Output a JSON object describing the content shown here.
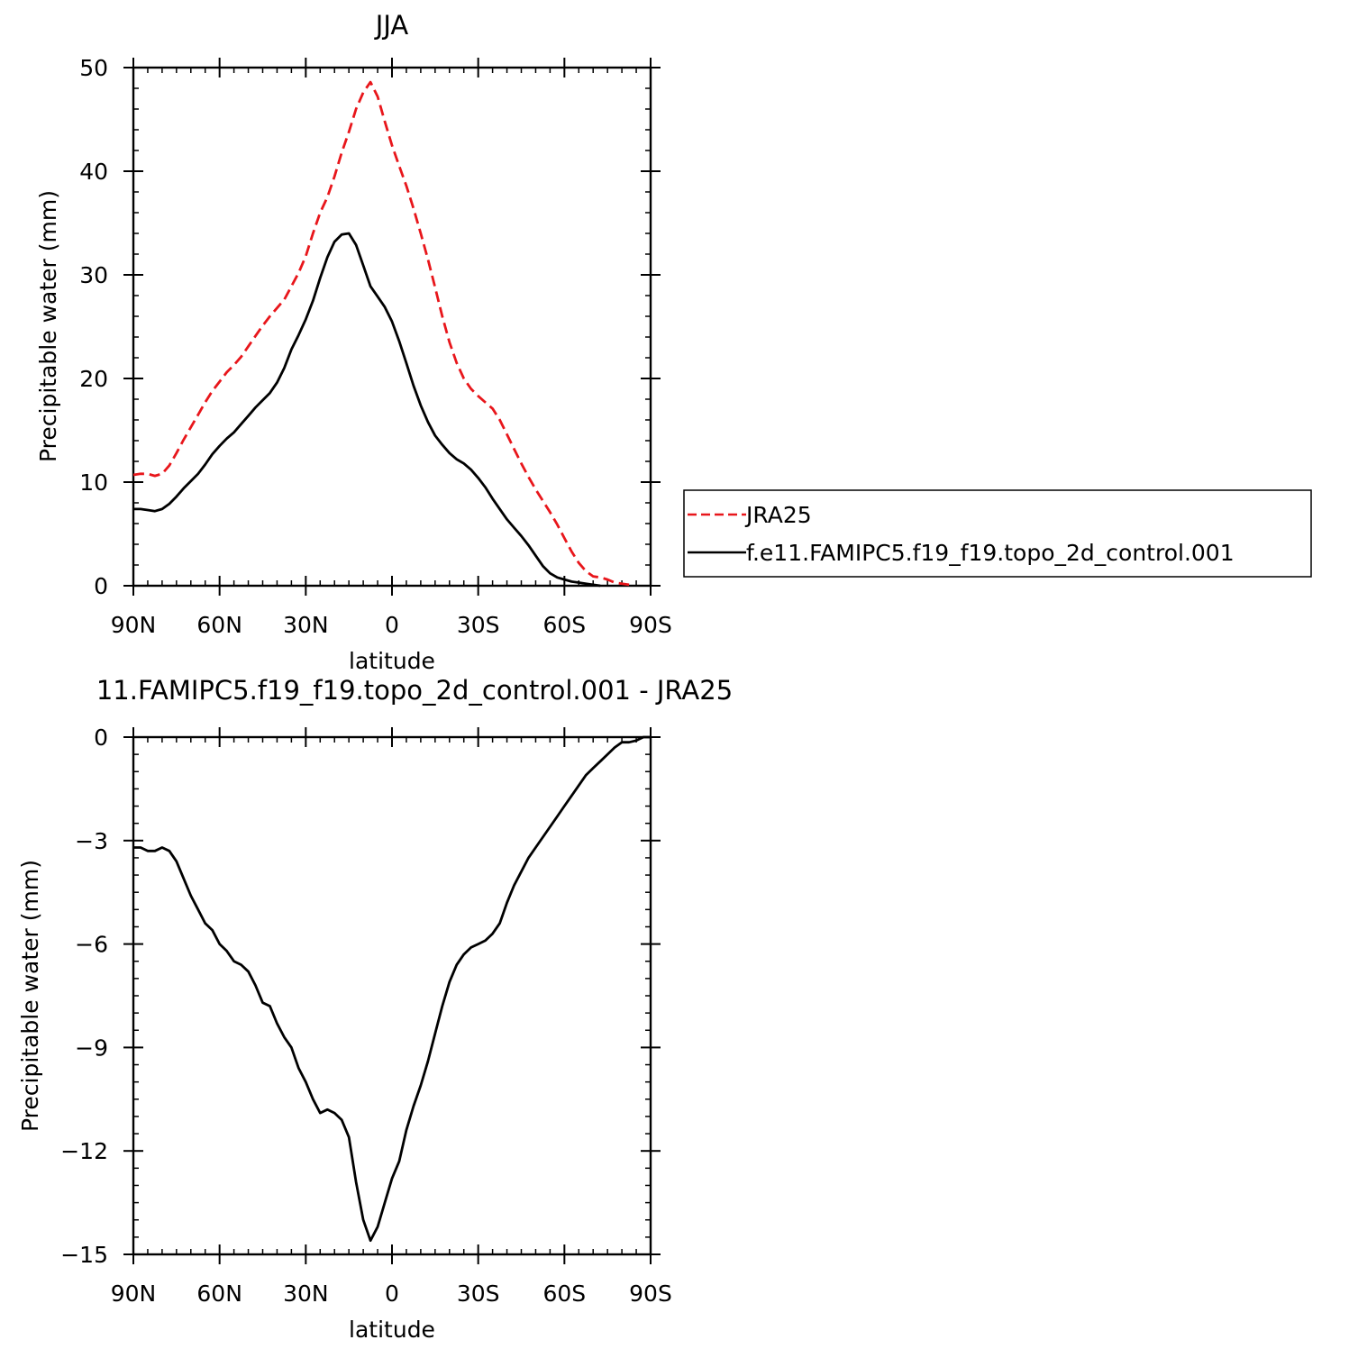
{
  "chart_data": [
    {
      "type": "line",
      "title": "JJA",
      "xlabel": "latitude",
      "ylabel": "Precipitable water (mm)",
      "xlim": [
        90,
        -90
      ],
      "ylim": [
        0,
        50
      ],
      "x_tick_values": [
        90,
        60,
        30,
        0,
        -30,
        -60,
        -90
      ],
      "x_tick_labels": [
        "90N",
        "60N",
        "30N",
        "0",
        "30S",
        "60S",
        "90S"
      ],
      "y_tick_values": [
        0,
        10,
        20,
        30,
        40,
        50
      ],
      "y_tick_labels": [
        "0",
        "10",
        "20",
        "30",
        "40",
        "50"
      ],
      "legend_placement": "right",
      "series": [
        {
          "name": "JRA25",
          "color": "#e8161b",
          "dash": "dashed",
          "points": [
            [
              90,
              10.7
            ],
            [
              87.5,
              10.8
            ],
            [
              85,
              10.8
            ],
            [
              82.5,
              10.6
            ],
            [
              80,
              10.8
            ],
            [
              77.5,
              11.6
            ],
            [
              75,
              12.8
            ],
            [
              72.5,
              14.1
            ],
            [
              70,
              15.3
            ],
            [
              67.5,
              16.5
            ],
            [
              65,
              17.7
            ],
            [
              62.5,
              18.8
            ],
            [
              60,
              19.7
            ],
            [
              57.5,
              20.6
            ],
            [
              55,
              21.3
            ],
            [
              52.5,
              22.1
            ],
            [
              50,
              23.1
            ],
            [
              47.5,
              24.1
            ],
            [
              45,
              25.1
            ],
            [
              42.5,
              26.0
            ],
            [
              40,
              26.8
            ],
            [
              37.5,
              27.6
            ],
            [
              35,
              28.9
            ],
            [
              32.5,
              30.2
            ],
            [
              30,
              31.8
            ],
            [
              27.5,
              34.0
            ],
            [
              25,
              36.0
            ],
            [
              22.5,
              37.5
            ],
            [
              20,
              39.5
            ],
            [
              17.5,
              41.8
            ],
            [
              15,
              43.8
            ],
            [
              12.5,
              46.0
            ],
            [
              10,
              47.6
            ],
            [
              7.5,
              48.6
            ],
            [
              5,
              47.2
            ],
            [
              2.5,
              44.8
            ],
            [
              0,
              42.5
            ],
            [
              -2.5,
              40.5
            ],
            [
              -5,
              38.6
            ],
            [
              -7.5,
              36.4
            ],
            [
              -10,
              34.0
            ],
            [
              -12.5,
              31.5
            ],
            [
              -15,
              28.8
            ],
            [
              -17.5,
              26.0
            ],
            [
              -20,
              23.5
            ],
            [
              -22.5,
              21.5
            ],
            [
              -25,
              20.0
            ],
            [
              -27.5,
              19.0
            ],
            [
              -30,
              18.3
            ],
            [
              -32.5,
              17.7
            ],
            [
              -35,
              17.1
            ],
            [
              -37.5,
              16.0
            ],
            [
              -40,
              14.6
            ],
            [
              -42.5,
              13.2
            ],
            [
              -45,
              11.8
            ],
            [
              -47.5,
              10.5
            ],
            [
              -50,
              9.3
            ],
            [
              -52.5,
              8.2
            ],
            [
              -55,
              7.1
            ],
            [
              -57.5,
              5.9
            ],
            [
              -60,
              4.6
            ],
            [
              -62.5,
              3.3
            ],
            [
              -65,
              2.2
            ],
            [
              -67.5,
              1.4
            ],
            [
              -70,
              0.9
            ],
            [
              -72.5,
              0.8
            ],
            [
              -75,
              0.6
            ],
            [
              -77.5,
              0.3
            ],
            [
              -80,
              0.2
            ],
            [
              -82.5,
              0.1
            ]
          ]
        },
        {
          "name": "f.e11.FAMIPC5.f19_f19.topo_2d_control.001",
          "color": "#000000",
          "dash": "solid",
          "points": [
            [
              90,
              7.4
            ],
            [
              87.5,
              7.4
            ],
            [
              85,
              7.3
            ],
            [
              82.5,
              7.2
            ],
            [
              80,
              7.4
            ],
            [
              77.5,
              7.9
            ],
            [
              75,
              8.6
            ],
            [
              72.5,
              9.4
            ],
            [
              70,
              10.1
            ],
            [
              67.5,
              10.8
            ],
            [
              65,
              11.7
            ],
            [
              62.5,
              12.7
            ],
            [
              60,
              13.5
            ],
            [
              57.5,
              14.2
            ],
            [
              55,
              14.8
            ],
            [
              52.5,
              15.6
            ],
            [
              50,
              16.4
            ],
            [
              47.5,
              17.2
            ],
            [
              45,
              17.9
            ],
            [
              42.5,
              18.6
            ],
            [
              40,
              19.6
            ],
            [
              37.5,
              21.0
            ],
            [
              35,
              22.8
            ],
            [
              32.5,
              24.2
            ],
            [
              30,
              25.7
            ],
            [
              27.5,
              27.5
            ],
            [
              25,
              29.7
            ],
            [
              22.5,
              31.7
            ],
            [
              20,
              33.2
            ],
            [
              17.5,
              33.9
            ],
            [
              15,
              34.0
            ],
            [
              12.5,
              32.9
            ],
            [
              10,
              30.9
            ],
            [
              7.5,
              28.9
            ],
            [
              5,
              27.9
            ],
            [
              2.5,
              26.9
            ],
            [
              0,
              25.5
            ],
            [
              -2.5,
              23.6
            ],
            [
              -5,
              21.5
            ],
            [
              -7.5,
              19.3
            ],
            [
              -10,
              17.4
            ],
            [
              -12.5,
              15.8
            ],
            [
              -15,
              14.5
            ],
            [
              -17.5,
              13.6
            ],
            [
              -20,
              12.8
            ],
            [
              -22.5,
              12.2
            ],
            [
              -25,
              11.8
            ],
            [
              -27.5,
              11.2
            ],
            [
              -30,
              10.4
            ],
            [
              -32.5,
              9.5
            ],
            [
              -35,
              8.4
            ],
            [
              -37.5,
              7.4
            ],
            [
              -40,
              6.4
            ],
            [
              -42.5,
              5.6
            ],
            [
              -45,
              4.8
            ],
            [
              -47.5,
              3.9
            ],
            [
              -50,
              2.9
            ],
            [
              -52.5,
              1.9
            ],
            [
              -55,
              1.2
            ],
            [
              -57.5,
              0.8
            ],
            [
              -60,
              0.6
            ],
            [
              -62.5,
              0.4
            ],
            [
              -65,
              0.3
            ],
            [
              -67.5,
              0.2
            ],
            [
              -70,
              0.1
            ],
            [
              -72.5,
              0.0
            ]
          ]
        }
      ]
    },
    {
      "type": "line",
      "title": "11.FAMIPC5.f19_f19.topo_2d_control.001 - JRA25",
      "xlabel": "latitude",
      "ylabel": "Precipitable water (mm)",
      "xlim": [
        90,
        -90
      ],
      "ylim": [
        -15,
        0
      ],
      "x_tick_values": [
        90,
        60,
        30,
        0,
        -30,
        -60,
        -90
      ],
      "x_tick_labels": [
        "90N",
        "60N",
        "30N",
        "0",
        "30S",
        "60S",
        "90S"
      ],
      "y_tick_values": [
        0,
        -3,
        -6,
        -9,
        -12,
        -15
      ],
      "y_tick_labels": [
        "0",
        "−3",
        "−6",
        "−9",
        "−12",
        "−15"
      ],
      "series": [
        {
          "color": "#000000",
          "dash": "solid",
          "points": [
            [
              90,
              -3.2
            ],
            [
              87.5,
              -3.2
            ],
            [
              85,
              -3.3
            ],
            [
              82.5,
              -3.3
            ],
            [
              80,
              -3.2
            ],
            [
              77.5,
              -3.3
            ],
            [
              75,
              -3.6
            ],
            [
              72.5,
              -4.1
            ],
            [
              70,
              -4.6
            ],
            [
              67.5,
              -5.0
            ],
            [
              65,
              -5.4
            ],
            [
              62.5,
              -5.6
            ],
            [
              60,
              -6.0
            ],
            [
              57.5,
              -6.2
            ],
            [
              55,
              -6.5
            ],
            [
              52.5,
              -6.6
            ],
            [
              50,
              -6.8
            ],
            [
              47.5,
              -7.2
            ],
            [
              45,
              -7.7
            ],
            [
              42.5,
              -7.8
            ],
            [
              40,
              -8.3
            ],
            [
              37.5,
              -8.7
            ],
            [
              35,
              -9.0
            ],
            [
              32.5,
              -9.6
            ],
            [
              30,
              -10.0
            ],
            [
              27.5,
              -10.5
            ],
            [
              25,
              -10.9
            ],
            [
              22.5,
              -10.8
            ],
            [
              20,
              -10.9
            ],
            [
              17.5,
              -11.1
            ],
            [
              15,
              -11.6
            ],
            [
              12.5,
              -12.9
            ],
            [
              10,
              -14.0
            ],
            [
              7.5,
              -14.6
            ],
            [
              5,
              -14.2
            ],
            [
              2.5,
              -13.5
            ],
            [
              0,
              -12.8
            ],
            [
              -2.5,
              -12.3
            ],
            [
              -5,
              -11.4
            ],
            [
              -7.5,
              -10.7
            ],
            [
              -10,
              -10.1
            ],
            [
              -12.5,
              -9.4
            ],
            [
              -15,
              -8.6
            ],
            [
              -17.5,
              -7.8
            ],
            [
              -20,
              -7.1
            ],
            [
              -22.5,
              -6.6
            ],
            [
              -25,
              -6.3
            ],
            [
              -27.5,
              -6.1
            ],
            [
              -30,
              -6.0
            ],
            [
              -32.5,
              -5.9
            ],
            [
              -35,
              -5.7
            ],
            [
              -37.5,
              -5.4
            ],
            [
              -40,
              -4.8
            ],
            [
              -42.5,
              -4.3
            ],
            [
              -45,
              -3.9
            ],
            [
              -47.5,
              -3.5
            ],
            [
              -50,
              -3.2
            ],
            [
              -52.5,
              -2.9
            ],
            [
              -55,
              -2.6
            ],
            [
              -57.5,
              -2.3
            ],
            [
              -60,
              -2.0
            ],
            [
              -62.5,
              -1.7
            ],
            [
              -65,
              -1.4
            ],
            [
              -67.5,
              -1.1
            ],
            [
              -70,
              -0.9
            ],
            [
              -72.5,
              -0.7
            ],
            [
              -75,
              -0.5
            ],
            [
              -77.5,
              -0.3
            ],
            [
              -80,
              -0.15
            ],
            [
              -82.5,
              -0.15
            ],
            [
              -85,
              -0.1
            ],
            [
              -87.5,
              0.0
            ],
            [
              -90,
              0.0
            ]
          ]
        }
      ]
    }
  ]
}
